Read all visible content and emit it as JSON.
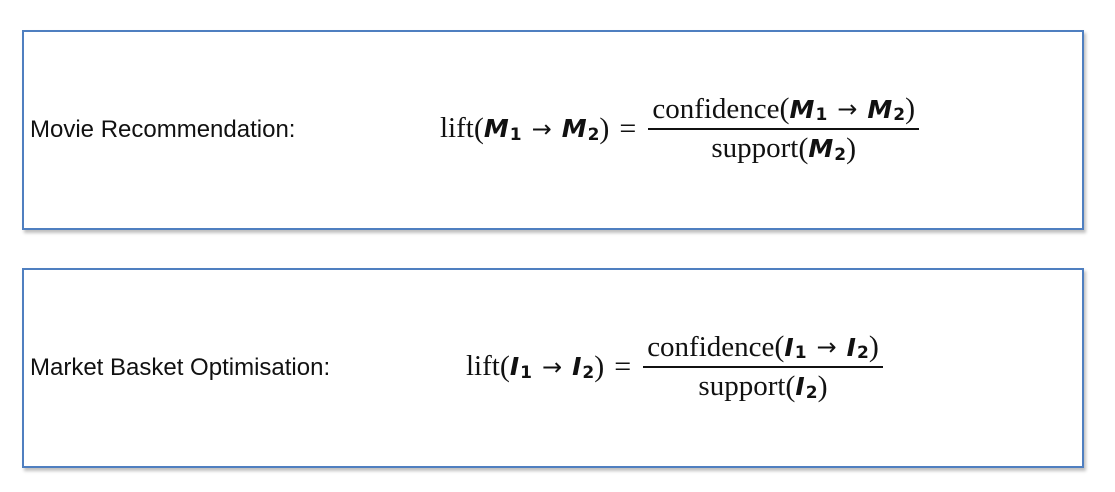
{
  "rows": [
    {
      "label": "Movie Recommendation:",
      "function_name": "lift",
      "item_symbol": "M",
      "index_a": "1",
      "index_b": "2",
      "numerator_function": "confidence",
      "denominator_function": "support"
    },
    {
      "label": "Market Basket Optimisation:",
      "function_name": "lift",
      "item_symbol": "I",
      "index_a": "1",
      "index_b": "2",
      "numerator_function": "confidence",
      "denominator_function": "support"
    }
  ],
  "symbols": {
    "arrow": "→",
    "equals": "=",
    "open_paren": "(",
    "close_paren": ")"
  },
  "colors": {
    "box_border": "#4f7fc0",
    "text": "#111111"
  }
}
